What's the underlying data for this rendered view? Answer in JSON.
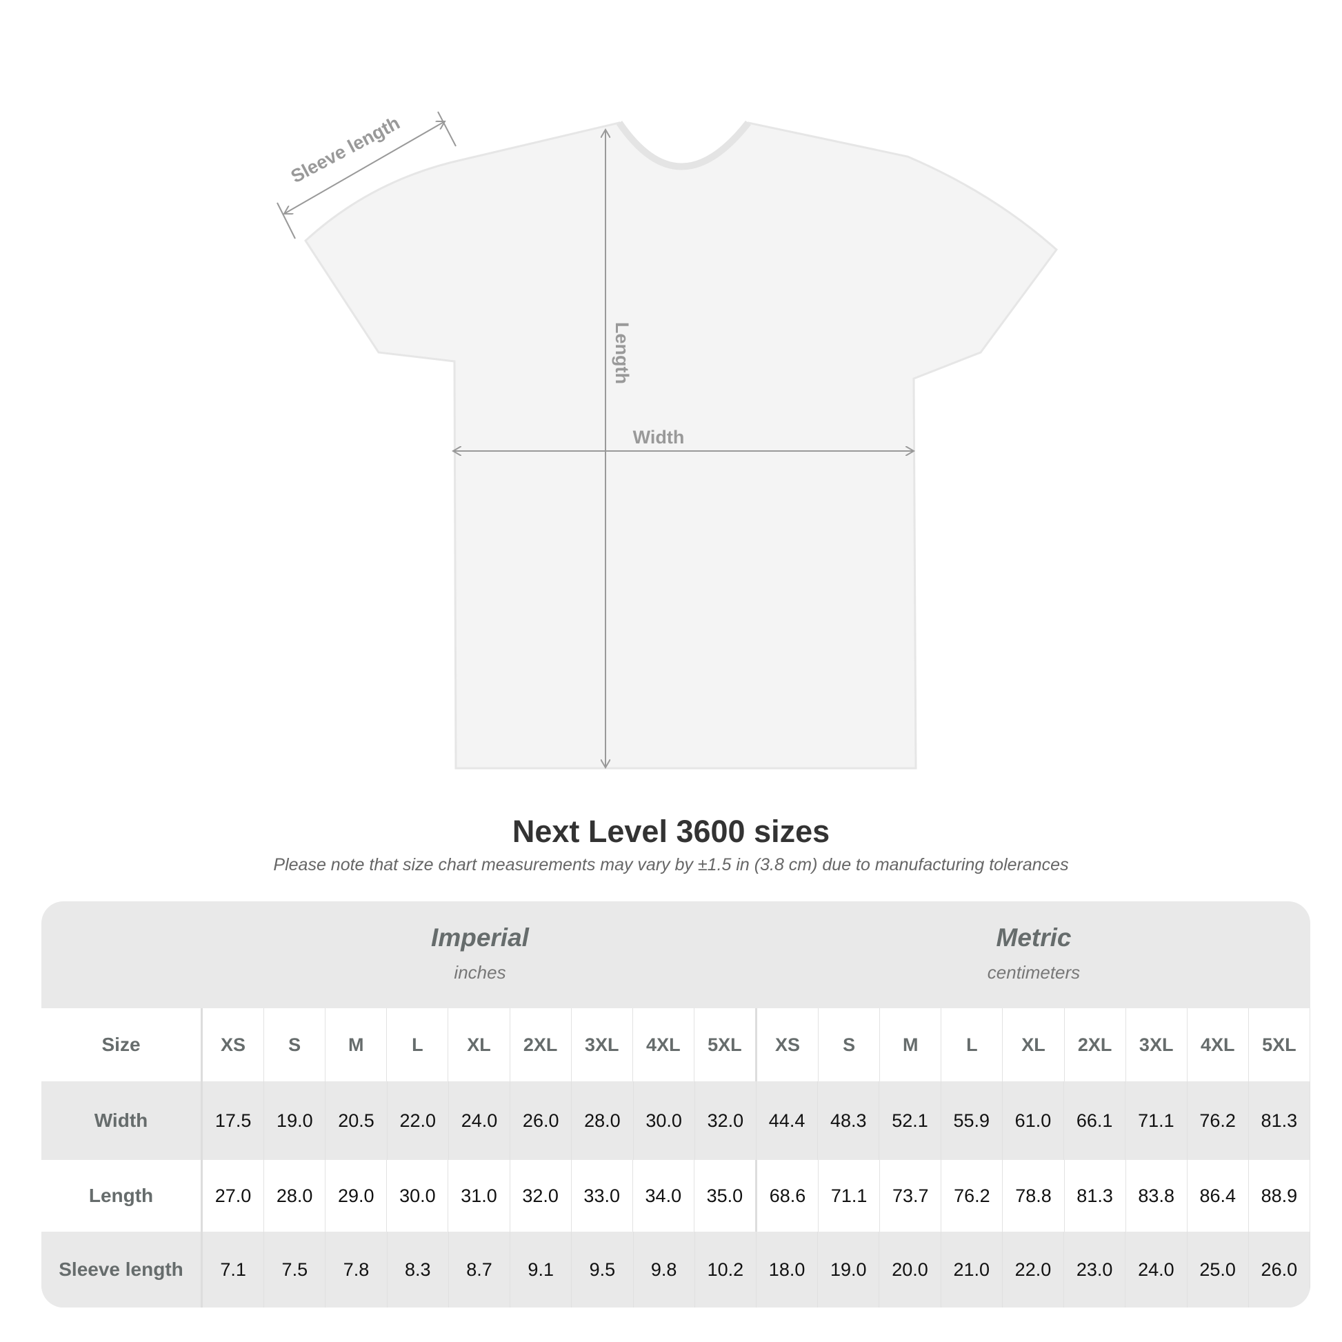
{
  "diagram": {
    "labels": {
      "sleeve": "Sleeve length",
      "length": "Length",
      "width": "Width"
    },
    "colors": {
      "shirt": "#f4f4f4",
      "arrow": "#999999"
    }
  },
  "title": "Next Level 3600 sizes",
  "subtitle": "Please note that size chart measurements may vary by ±1.5 in (3.8 cm) due to manufacturing tolerances",
  "table": {
    "imperial": {
      "heading": "Imperial",
      "unit": "inches"
    },
    "metric": {
      "heading": "Metric",
      "unit": "centimeters"
    },
    "size_label": "Size",
    "sizes": [
      "XS",
      "S",
      "M",
      "L",
      "XL",
      "2XL",
      "3XL",
      "4XL",
      "5XL"
    ],
    "rows": [
      {
        "label": "Width",
        "imperial": [
          "17.5",
          "19.0",
          "20.5",
          "22.0",
          "24.0",
          "26.0",
          "28.0",
          "30.0",
          "32.0"
        ],
        "metric": [
          "44.4",
          "48.3",
          "52.1",
          "55.9",
          "61.0",
          "66.1",
          "71.1",
          "76.2",
          "81.3"
        ]
      },
      {
        "label": "Length",
        "imperial": [
          "27.0",
          "28.0",
          "29.0",
          "30.0",
          "31.0",
          "32.0",
          "33.0",
          "34.0",
          "35.0"
        ],
        "metric": [
          "68.6",
          "71.1",
          "73.7",
          "76.2",
          "78.8",
          "81.3",
          "83.8",
          "86.4",
          "88.9"
        ]
      },
      {
        "label": "Sleeve length",
        "imperial": [
          "7.1",
          "7.5",
          "7.8",
          "8.3",
          "8.7",
          "9.1",
          "9.5",
          "9.8",
          "10.2"
        ],
        "metric": [
          "18.0",
          "19.0",
          "20.0",
          "21.0",
          "22.0",
          "23.0",
          "24.0",
          "25.0",
          "26.0"
        ]
      }
    ]
  }
}
